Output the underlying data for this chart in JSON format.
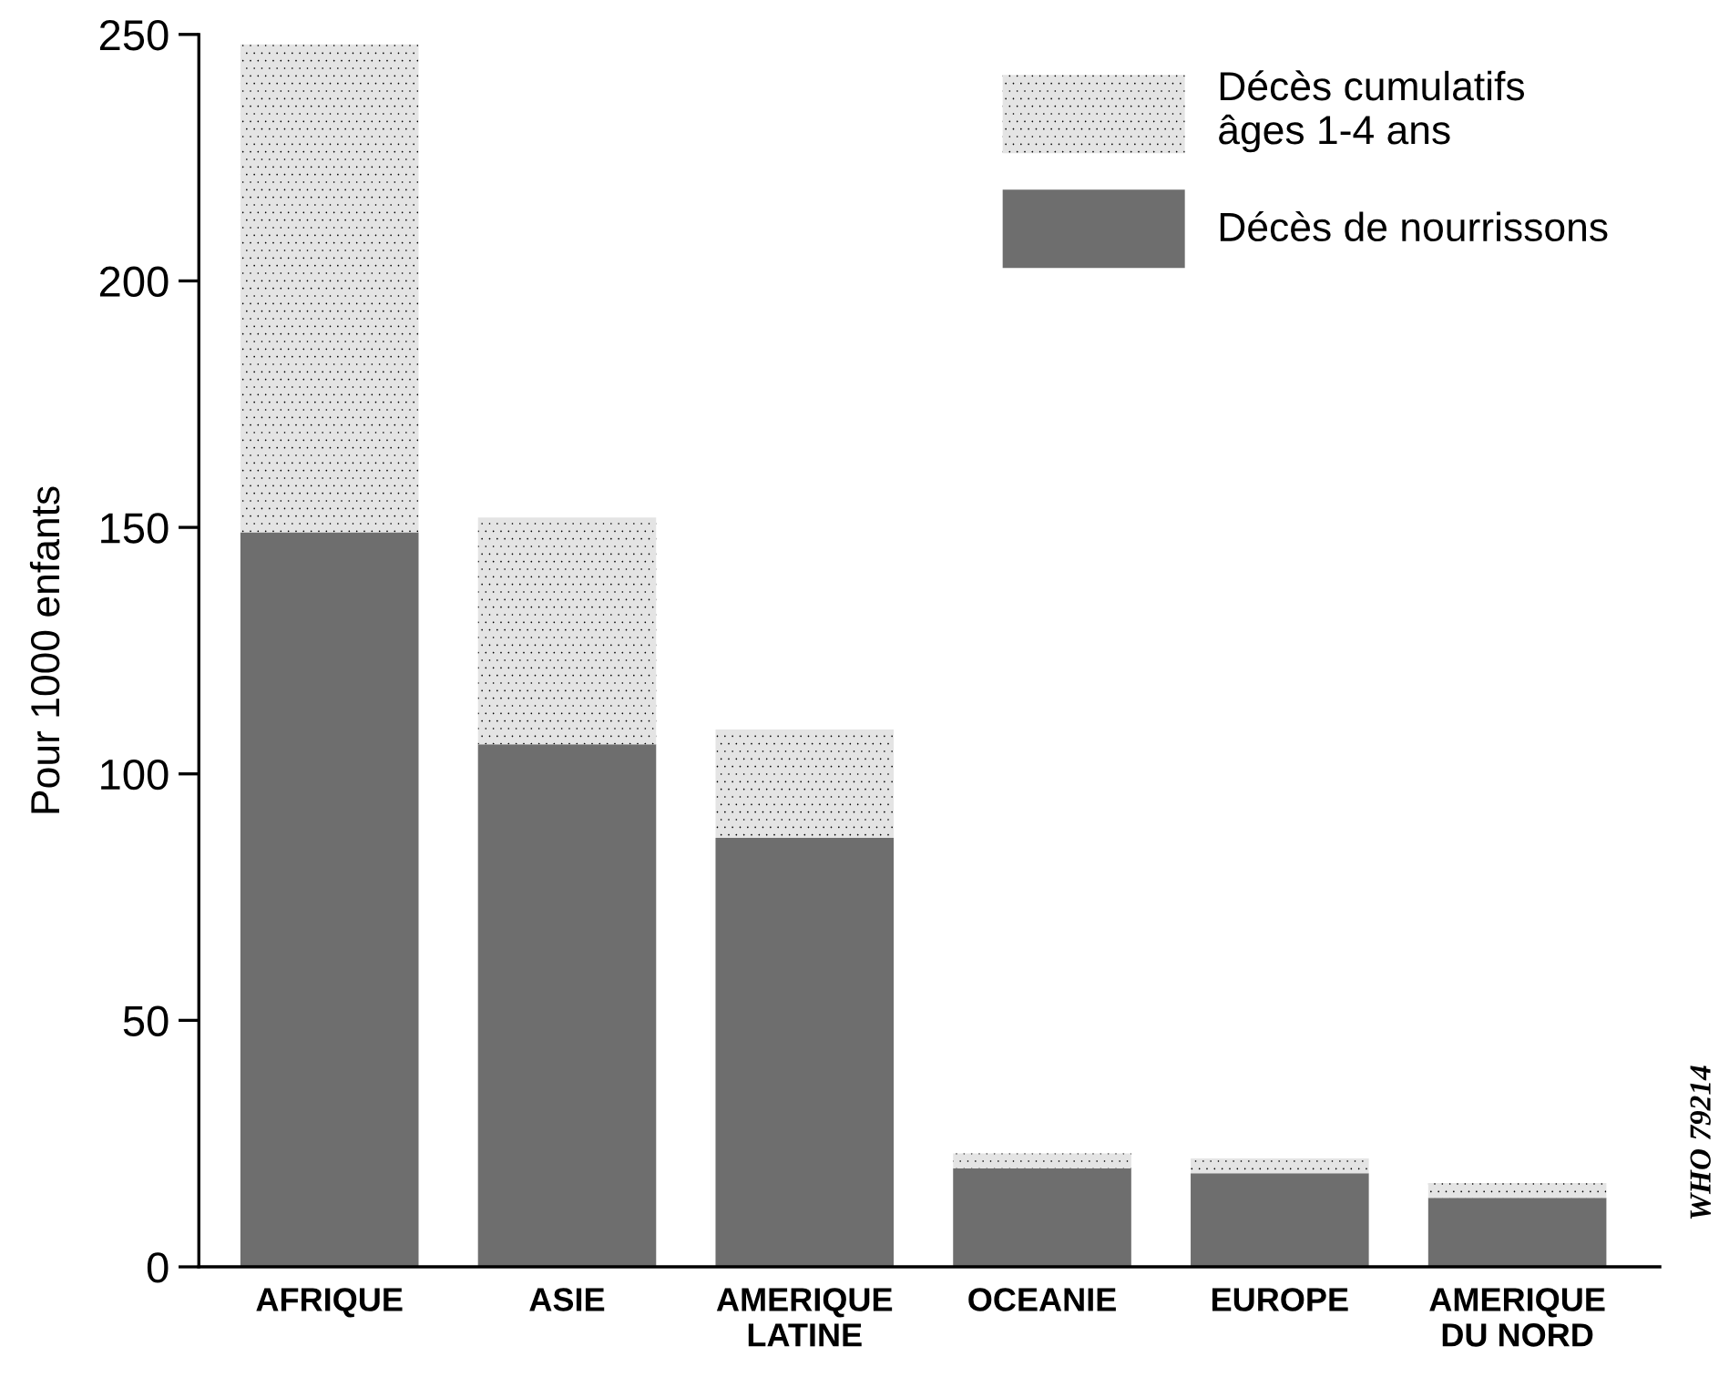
{
  "chart_data": {
    "type": "bar",
    "stacked": true,
    "ylabel": "Pour 1000 enfants",
    "categories": [
      "AFRIQUE",
      "ASIE",
      "AMERIQUE\nLATINE",
      "OCEANIE",
      "EUROPE",
      "AMERIQUE\nDU NORD"
    ],
    "series": [
      {
        "name": "Décès de nourrissons",
        "color": "#6e6e6e",
        "values": [
          149,
          106,
          87,
          20,
          19,
          14
        ]
      },
      {
        "name": "Décès cumulatifs\nâges 1-4 ans",
        "color": "#e4e4e4",
        "values": [
          99,
          46,
          22,
          3,
          3,
          3
        ]
      }
    ],
    "ylim": [
      0,
      250
    ],
    "yticks": [
      0,
      50,
      100,
      150,
      200,
      250
    ],
    "grid": false,
    "legend": "top right",
    "annotations": [
      "WHO 79214"
    ]
  }
}
